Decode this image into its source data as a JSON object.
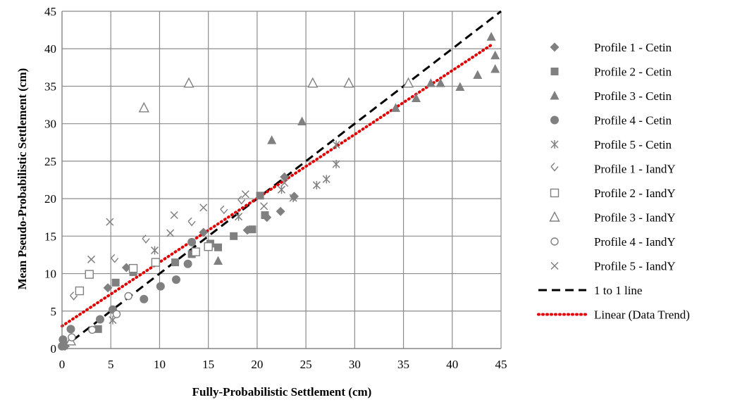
{
  "chart_data": {
    "type": "scatter",
    "title": "",
    "xlabel": "Fully-Probabilistic Settlement (cm)",
    "ylabel": "Mean Pseudo-Probabilistic Settlement (cm)",
    "xlim": [
      0,
      45
    ],
    "ylim": [
      0,
      45
    ],
    "xticks": [
      "0",
      "5",
      "10",
      "15",
      "20",
      "25",
      "30",
      "35",
      "40",
      "45"
    ],
    "yticks": [
      "0",
      "5",
      "10",
      "15",
      "20",
      "25",
      "30",
      "35",
      "40",
      "45"
    ],
    "grid": true,
    "legend_position": "right",
    "series": [
      {
        "name": "Profile 1 - Cetin",
        "marker": "diamond",
        "color": "#808080",
        "points": [
          [
            0.3,
            0.3
          ],
          [
            4.7,
            8.1
          ],
          [
            6.6,
            10.8
          ],
          [
            14.5,
            15.5
          ],
          [
            19.0,
            15.8
          ],
          [
            21.0,
            17.5
          ],
          [
            22.4,
            18.3
          ],
          [
            22.8,
            22.9
          ],
          [
            23.8,
            20.3
          ]
        ]
      },
      {
        "name": "Profile 2 - Cetin",
        "marker": "square",
        "color": "#808080",
        "points": [
          [
            0.2,
            0.4
          ],
          [
            3.7,
            2.6
          ],
          [
            5.5,
            8.8
          ],
          [
            7.3,
            10.2
          ],
          [
            11.6,
            11.5
          ],
          [
            13.3,
            12.6
          ],
          [
            15.2,
            14.0
          ],
          [
            16.0,
            13.5
          ],
          [
            17.6,
            15.0
          ],
          [
            19.5,
            15.9
          ],
          [
            20.3,
            20.4
          ],
          [
            20.8,
            17.8
          ]
        ]
      },
      {
        "name": "Profile 3 - Cetin",
        "marker": "triangle",
        "color": "#808080",
        "points": [
          [
            16.0,
            11.7
          ],
          [
            21.5,
            27.8
          ],
          [
            24.6,
            30.3
          ],
          [
            34.2,
            32.1
          ],
          [
            36.3,
            33.4
          ],
          [
            37.8,
            35.4
          ],
          [
            38.8,
            35.4
          ],
          [
            40.8,
            34.9
          ],
          [
            42.6,
            36.5
          ],
          [
            44.0,
            41.6
          ],
          [
            44.4,
            39.1
          ],
          [
            44.4,
            37.3
          ]
        ]
      },
      {
        "name": "Profile 4 - Cetin",
        "marker": "circle",
        "color": "#808080",
        "points": [
          [
            0.0,
            0.3
          ],
          [
            0.1,
            1.2
          ],
          [
            0.9,
            2.6
          ],
          [
            3.9,
            3.9
          ],
          [
            5.2,
            5.2
          ],
          [
            8.4,
            6.6
          ],
          [
            10.1,
            8.3
          ],
          [
            11.7,
            9.2
          ],
          [
            12.9,
            11.3
          ],
          [
            13.3,
            14.2
          ]
        ]
      },
      {
        "name": "Profile 5 - Cetin",
        "marker": "star",
        "color": "#808080",
        "points": [
          [
            5.2,
            3.8
          ],
          [
            9.5,
            13.1
          ],
          [
            18.1,
            17.6
          ],
          [
            22.5,
            21.2
          ],
          [
            23.7,
            20.1
          ],
          [
            26.1,
            21.8
          ],
          [
            27.1,
            22.6
          ],
          [
            28.1,
            24.6
          ],
          [
            28.1,
            27.2
          ]
        ]
      },
      {
        "name": "Profile 1 - IandY",
        "marker": "open-diamond",
        "color": "#808080",
        "points": [
          [
            1.2,
            6.8
          ],
          [
            5.4,
            11.8
          ],
          [
            8.6,
            14.4
          ],
          [
            13.3,
            16.7
          ],
          [
            16.6,
            18.3
          ],
          [
            18.4,
            19.6
          ]
        ]
      },
      {
        "name": "Profile 2 - IandY",
        "marker": "open-square",
        "color": "#808080",
        "points": [
          [
            1.8,
            7.7
          ],
          [
            2.8,
            9.9
          ],
          [
            7.3,
            10.7
          ],
          [
            9.6,
            11.5
          ],
          [
            13.7,
            12.9
          ],
          [
            15.0,
            13.6
          ]
        ]
      },
      {
        "name": "Profile 3 - IandY",
        "marker": "open-triangle",
        "color": "#808080",
        "points": [
          [
            0.9,
            1.0
          ],
          [
            8.4,
            32.1
          ],
          [
            13.0,
            35.4
          ],
          [
            25.7,
            35.4
          ],
          [
            29.4,
            35.4
          ],
          [
            35.5,
            35.4
          ]
        ]
      },
      {
        "name": "Profile 4 - IandY",
        "marker": "open-circle",
        "color": "#808080",
        "points": [
          [
            1.0,
            1.5
          ],
          [
            3.1,
            2.5
          ],
          [
            5.6,
            4.6
          ],
          [
            6.8,
            7.0
          ]
        ]
      },
      {
        "name": "Profile 5 - IandY",
        "marker": "x",
        "color": "#808080",
        "points": [
          [
            0.4,
            0.7
          ],
          [
            3.0,
            11.9
          ],
          [
            4.9,
            16.9
          ],
          [
            11.1,
            15.4
          ],
          [
            11.5,
            17.8
          ],
          [
            14.5,
            18.8
          ],
          [
            18.8,
            20.6
          ],
          [
            20.7,
            19.0
          ],
          [
            22.8,
            22.1
          ]
        ]
      }
    ],
    "lines": [
      {
        "name": "1 to 1 line",
        "style": "dashed",
        "color": "#000000",
        "x": [
          0,
          45
        ],
        "y": [
          0,
          45
        ]
      },
      {
        "name": "Linear (Data Trend)",
        "style": "dotted",
        "color": "#e00000",
        "x": [
          0,
          44
        ],
        "y": [
          3.0,
          40.5
        ]
      }
    ]
  }
}
